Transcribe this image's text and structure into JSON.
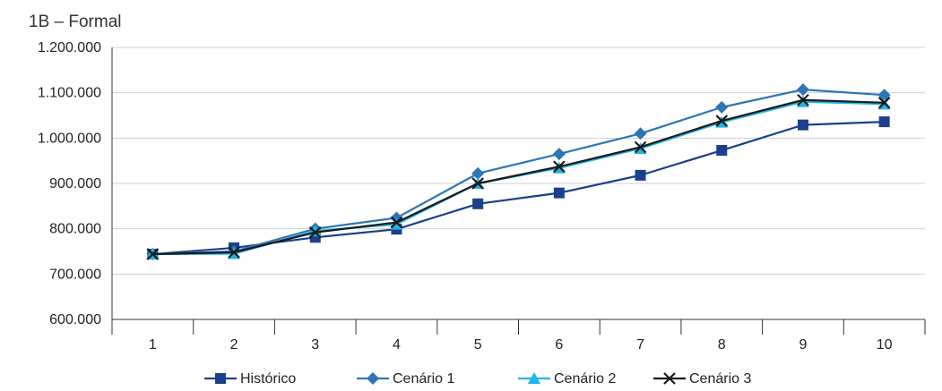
{
  "chart_data": {
    "type": "line",
    "title": "1B – Formal",
    "xlabel": "",
    "ylabel": "",
    "categories": [
      "1",
      "2",
      "3",
      "4",
      "5",
      "6",
      "7",
      "8",
      "9",
      "10"
    ],
    "ylim": [
      600000,
      1200000
    ],
    "y_ticks": [
      {
        "value": 600000,
        "label": "600.000"
      },
      {
        "value": 700000,
        "label": "700.000"
      },
      {
        "value": 800000,
        "label": "800.000"
      },
      {
        "value": 900000,
        "label": "900.000"
      },
      {
        "value": 1000000,
        "label": "1.000.000"
      },
      {
        "value": 1100000,
        "label": "1.100.000"
      },
      {
        "value": 1200000,
        "label": "1.200.000"
      }
    ],
    "grid": "horizontal",
    "legend_position": "bottom",
    "series": [
      {
        "name": "Histórico",
        "marker": "square",
        "color": "#1b3f8b",
        "values": [
          744000,
          758000,
          781000,
          799000,
          855000,
          879000,
          918000,
          973000,
          1029000,
          1036000
        ]
      },
      {
        "name": "Cenário 1",
        "marker": "diamond",
        "color": "#2e75b6",
        "values": [
          744000,
          750000,
          800000,
          824000,
          922000,
          965000,
          1010000,
          1068000,
          1107000,
          1095000
        ]
      },
      {
        "name": "Cenário 2",
        "marker": "triangle",
        "color": "#1fb5e6",
        "values": [
          744000,
          745000,
          795000,
          810000,
          900000,
          934000,
          977000,
          1035000,
          1080000,
          1075000
        ]
      },
      {
        "name": "Cenário 3",
        "marker": "x",
        "color": "#1a1a1a",
        "values": [
          744000,
          748000,
          792000,
          814000,
          900000,
          937000,
          980000,
          1038000,
          1084000,
          1078000
        ]
      }
    ]
  }
}
